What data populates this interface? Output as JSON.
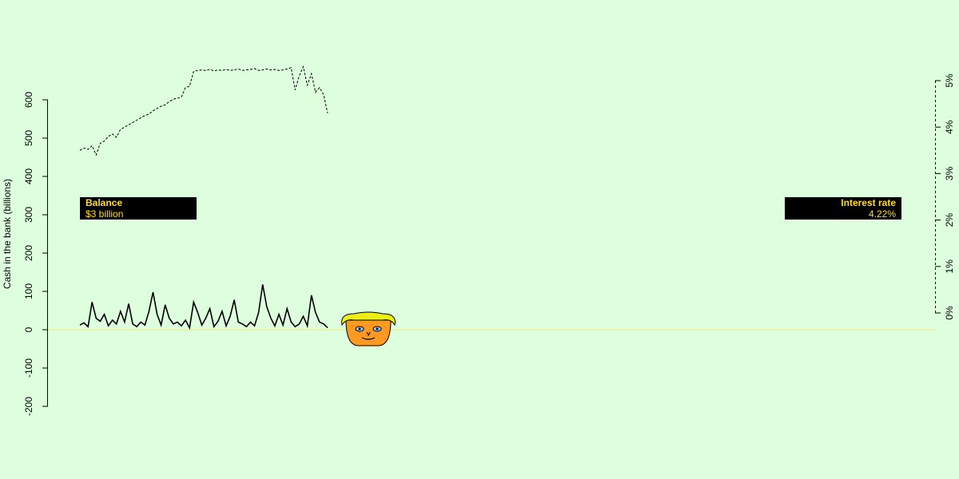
{
  "chart_data": {
    "type": "line",
    "ylabel": "Cash in the bank (billions)",
    "y_ticks": [
      "-200",
      "-100",
      "0",
      "100",
      "200",
      "300",
      "400",
      "500",
      "600"
    ],
    "y_axis_range": [
      -200,
      600
    ],
    "right_ticks": [
      "0%",
      "1%",
      "2%",
      "3%",
      "4%",
      "5%"
    ],
    "right_axis_range": [
      0,
      5
    ],
    "zero_line_color": "#eeee88",
    "series": [
      {
        "axis": "right",
        "style": "dashed",
        "x": [
          0,
          5,
          10,
          15,
          20,
          25,
          30,
          35,
          40,
          45,
          50,
          55,
          60,
          65,
          70,
          75,
          80,
          85,
          90,
          95,
          100,
          105,
          110,
          115,
          120,
          125,
          130,
          135,
          140,
          145,
          150,
          155,
          160,
          165,
          170,
          175,
          180,
          185,
          190,
          195,
          200,
          205,
          210,
          215,
          220,
          225,
          230,
          235,
          240,
          245,
          250,
          255,
          260,
          265,
          270,
          275,
          280,
          285,
          290,
          295,
          300,
          305
        ],
        "values": [
          3.5,
          3.55,
          3.52,
          3.6,
          3.4,
          3.65,
          3.7,
          3.8,
          3.85,
          3.78,
          3.95,
          4.0,
          4.05,
          4.1,
          4.15,
          4.2,
          4.25,
          4.28,
          4.35,
          4.4,
          4.45,
          4.48,
          4.55,
          4.6,
          4.62,
          4.65,
          4.85,
          4.88,
          5.2,
          5.22,
          5.23,
          5.22,
          5.24,
          5.21,
          5.23,
          5.22,
          5.24,
          5.22,
          5.23,
          5.25,
          5.22,
          5.23,
          5.24,
          5.26,
          5.22,
          5.23,
          5.25,
          5.23,
          5.24,
          5.22,
          5.23,
          5.25,
          5.28,
          4.8,
          5.1,
          5.3,
          4.9,
          5.15,
          4.75,
          4.85,
          4.7,
          4.3
        ]
      },
      {
        "axis": "left",
        "style": "solid",
        "x": [
          0,
          5,
          10,
          15,
          20,
          25,
          30,
          35,
          40,
          45,
          50,
          55,
          60,
          65,
          70,
          75,
          80,
          85,
          90,
          95,
          100,
          105,
          110,
          115,
          120,
          125,
          130,
          135,
          140,
          145,
          150,
          155,
          160,
          165,
          170,
          175,
          180,
          185,
          190,
          195,
          200,
          205,
          210,
          215,
          220,
          225,
          230,
          235,
          240,
          245,
          250,
          255,
          260,
          265,
          270,
          275,
          280,
          285,
          290,
          295,
          300,
          305
        ],
        "values": [
          12,
          18,
          8,
          72,
          30,
          22,
          40,
          10,
          25,
          15,
          48,
          20,
          68,
          15,
          8,
          20,
          12,
          48,
          98,
          40,
          12,
          65,
          30,
          15,
          20,
          10,
          25,
          5,
          72,
          45,
          12,
          30,
          55,
          8,
          22,
          48,
          10,
          35,
          78,
          20,
          15,
          8,
          20,
          10,
          45,
          118,
          60,
          30,
          10,
          40,
          12,
          55,
          20,
          8,
          15,
          35,
          10,
          90,
          45,
          20,
          15,
          5
        ]
      }
    ]
  },
  "balance_panel": {
    "title": "Balance",
    "value": "$3 billion"
  },
  "interest_panel": {
    "title": "Interest rate",
    "value": "4.22%"
  },
  "avatar": {
    "icon": "smiling-face-icon",
    "hair_color": "#eeee11",
    "face_color": "#ff9922"
  }
}
